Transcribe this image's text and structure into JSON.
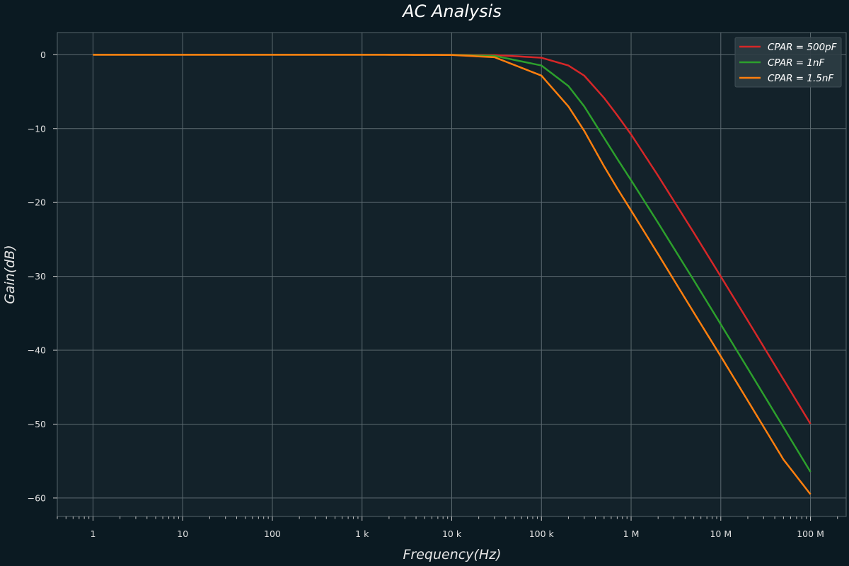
{
  "chart_data": {
    "type": "line",
    "title": "AC Analysis",
    "xlabel": "Frequency(Hz)",
    "ylabel": "Gain(dB)",
    "x_scale": "log",
    "xlim": [
      0.4,
      250000000
    ],
    "ylim": [
      -62.5,
      3
    ],
    "x_ticks": [
      1,
      10,
      100,
      1000,
      10000,
      100000,
      1000000,
      10000000,
      100000000
    ],
    "x_tick_labels": [
      "1",
      "10",
      "100",
      "1 k",
      "10 k",
      "100 k",
      "1 M",
      "10 M",
      "100 M"
    ],
    "y_ticks": [
      0,
      -10,
      -20,
      -30,
      -40,
      -50,
      -60
    ],
    "y_tick_labels": [
      "0",
      "−10",
      "−20",
      "−30",
      "−40",
      "−50",
      "−60"
    ],
    "grid": true,
    "legend_position": "top-right",
    "colors": {
      "background": "#0b1a22",
      "plot_background": "#13222a",
      "grid": "#5c6a70",
      "legend_background": "#2e3d44"
    },
    "series": [
      {
        "name": "CPAR = 500pF",
        "color": "#d62728",
        "x": [
          1,
          10,
          100,
          1000,
          10000,
          30000,
          100000,
          200000,
          300000,
          500000,
          700000,
          1000000,
          2000000,
          5000000,
          10000000,
          20000000,
          50000000,
          100000000
        ],
        "y": [
          0,
          0,
          0,
          0,
          -0.01,
          -0.04,
          -0.41,
          -1.46,
          -2.83,
          -5.85,
          -8.19,
          -10.79,
          -16.39,
          -24.09,
          -30.02,
          -35.99,
          -43.95,
          -49.97
        ]
      },
      {
        "name": "CPAR = 1nF",
        "color": "#2ca02c",
        "x": [
          1,
          10,
          100,
          1000,
          10000,
          30000,
          100000,
          200000,
          300000,
          500000,
          700000,
          1000000,
          2000000,
          5000000,
          10000000,
          20000000,
          50000000,
          100000000
        ],
        "y": [
          0,
          0,
          0,
          0,
          -0.02,
          -0.15,
          -1.46,
          -4.24,
          -6.99,
          -11.27,
          -14.08,
          -16.99,
          -22.76,
          -30.53,
          -36.49,
          -42.47,
          -50.43,
          -56.47
        ]
      },
      {
        "name": "CPAR = 1.5nF",
        "color": "#ff7f0e",
        "x": [
          1,
          10,
          100,
          1000,
          10000,
          30000,
          100000,
          200000,
          300000,
          500000,
          700000,
          1000000,
          2000000,
          5000000,
          10000000,
          20000000,
          50000000,
          100000000
        ],
        "y": [
          0,
          0,
          0,
          0,
          -0.04,
          -0.34,
          -2.83,
          -7.0,
          -10.3,
          -15.11,
          -18.08,
          -21.09,
          -26.99,
          -34.9,
          -40.82,
          -46.83,
          -54.8,
          -59.5
        ]
      }
    ]
  }
}
